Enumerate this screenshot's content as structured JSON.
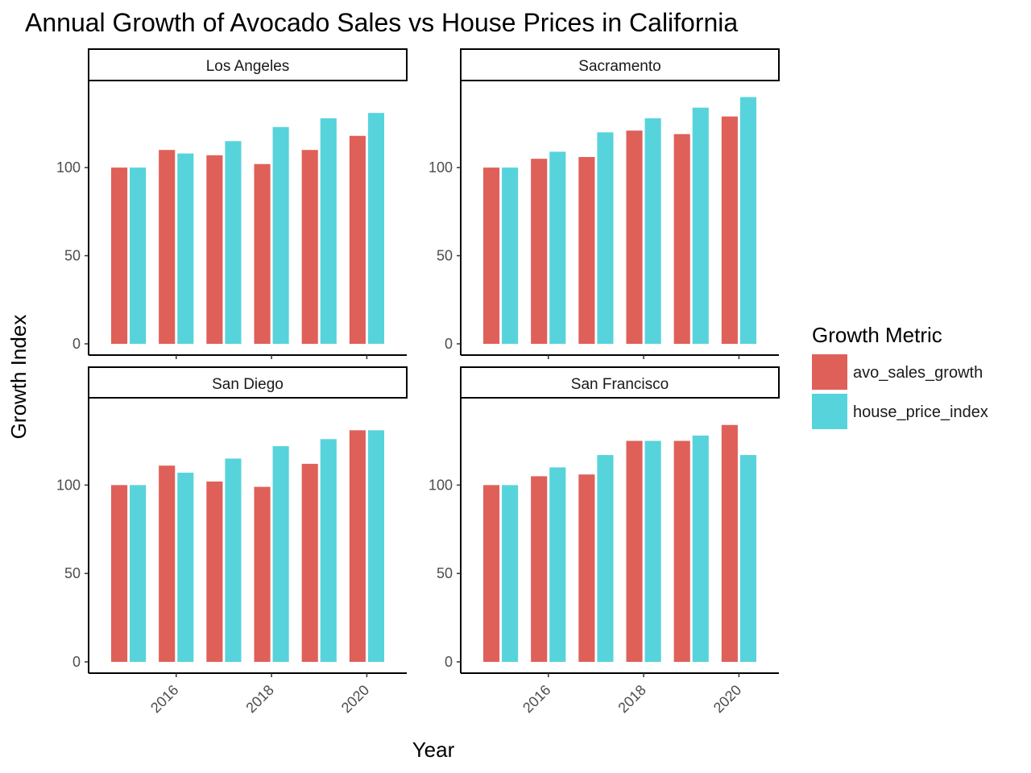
{
  "chart_data": {
    "type": "bar",
    "title": "Annual Growth of Avocado Sales vs House Prices in California",
    "xlabel": "Year",
    "ylabel": "Growth Index",
    "years": [
      2015,
      2016,
      2017,
      2018,
      2019,
      2020
    ],
    "x_ticks": [
      "2016",
      "2018",
      "2020"
    ],
    "legend": {
      "title": "Growth Metric",
      "placement": "right",
      "entries": [
        {
          "key": "avo_sales_growth",
          "label": "avo_sales_growth",
          "color": "#df6059"
        },
        {
          "key": "house_price_index",
          "label": "house_price_index",
          "color": "#57d3db"
        }
      ]
    },
    "panels": [
      {
        "name": "Los Angeles",
        "ylim": [
          0,
          143
        ],
        "yticks": [
          0,
          50,
          100
        ],
        "series": [
          {
            "name": "avo_sales_growth",
            "values": [
              100,
              110,
              107,
              102,
              110,
              118
            ]
          },
          {
            "name": "house_price_index",
            "values": [
              100,
              108,
              115,
              123,
              128,
              131
            ]
          }
        ]
      },
      {
        "name": "Sacramento",
        "ylim": [
          0,
          143
        ],
        "yticks": [
          0,
          50,
          100
        ],
        "series": [
          {
            "name": "avo_sales_growth",
            "values": [
              100,
              105,
              106,
              121,
              119,
              129
            ]
          },
          {
            "name": "house_price_index",
            "values": [
              100,
              109,
              120,
              128,
              134,
              140
            ]
          }
        ]
      },
      {
        "name": "San Diego",
        "ylim": [
          0,
          143
        ],
        "yticks": [
          0,
          50,
          100
        ],
        "series": [
          {
            "name": "avo_sales_growth",
            "values": [
              100,
              111,
              102,
              99,
              112,
              131
            ]
          },
          {
            "name": "house_price_index",
            "values": [
              100,
              107,
              115,
              122,
              126,
              131
            ]
          }
        ]
      },
      {
        "name": "San Francisco",
        "ylim": [
          0,
          143
        ],
        "yticks": [
          0,
          50,
          100
        ],
        "series": [
          {
            "name": "avo_sales_growth",
            "values": [
              100,
              105,
              106,
              125,
              125,
              134
            ]
          },
          {
            "name": "house_price_index",
            "values": [
              100,
              110,
              117,
              125,
              128,
              117
            ]
          }
        ]
      }
    ]
  }
}
